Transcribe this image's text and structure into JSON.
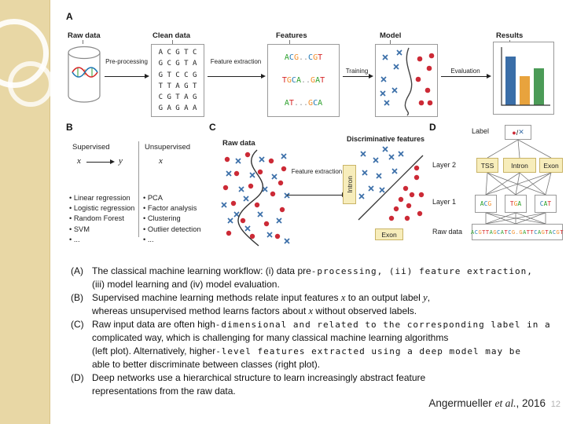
{
  "slide": {
    "page_number": "12",
    "attribution": {
      "pre": "Angermueller ",
      "italic": "et al.",
      "post": ", 2016"
    }
  },
  "figure": {
    "panelA": {
      "label": "A",
      "stage_titles": [
        "Raw data",
        "Clean data",
        "Features",
        "Model",
        "Results"
      ],
      "arrow_labels": [
        "Pre-processing",
        "Feature extraction",
        "Training",
        "Evaluation"
      ],
      "sequence_rows": [
        "A C G T C",
        "G C G T A",
        "G T C C G",
        "T T A G T",
        "C G T A G",
        "G A G A A"
      ],
      "motif_rows": [
        "ACG..CGT",
        "TGCA..GAT",
        "AT...GCA"
      ]
    },
    "panelB": {
      "label": "B",
      "columns": [
        {
          "title": "Supervised",
          "diagram_from": "x",
          "diagram_to": "y",
          "items": [
            "Linear regression",
            "Logistic regression",
            "Random Forest",
            "SVM",
            "..."
          ]
        },
        {
          "title": "Unsupervised",
          "diagram_from": "x",
          "diagram_to": "",
          "items": [
            "PCA",
            "Factor analysis",
            "Clustering",
            "Outlier detection",
            "..."
          ]
        }
      ]
    },
    "panelC": {
      "label": "C",
      "left_title": "Raw data",
      "arrow_label": "Feature extraction",
      "right_title": "Discriminative features",
      "y_axis_label": "Intron",
      "x_axis_label": "Exon"
    },
    "panelD": {
      "label": "D",
      "label_row_text": "Label",
      "box_dot": "●",
      "box_slash": "/",
      "box_cross": "✕",
      "layer2_text": "Layer 2",
      "layer1_text": "Layer 1",
      "raw_text": "Raw data",
      "layer2_nodes": [
        "TSS",
        "Intron",
        "Exon"
      ],
      "layer1_motifs": [
        "ACG",
        "TGA",
        "CAT"
      ],
      "raw_sequence": "ACGTTAGCATCG.GATTCAGTACGT"
    },
    "colors": {
      "dot_red": "#cc2a36",
      "cross_blue": "#3a6ea8",
      "node_yellow": "#f7edbb",
      "bar_blue": "#3a6ea8",
      "bar_orange": "#e8a33d",
      "bar_green": "#4b9b57"
    }
  },
  "caption": {
    "lines": [
      {
        "marker": "(A)",
        "s0": "The classical machine learning workflow: (i) data pre",
        "s1": "‐processing, (ii) feature extraction,"
      },
      {
        "marker": "",
        "s0": "(iii) model learning and (iv) model evaluation."
      },
      {
        "marker": "(B)",
        "s0": "Supervised machine learning methods relate input features ",
        "s1": "x",
        "s2": " to an output label ",
        "s3": "y",
        "s4": ","
      },
      {
        "marker": "",
        "s0": "whereas unsupervised method learns factors about ",
        "s1": "x",
        "s2": " without observed labels."
      },
      {
        "marker": "(C)",
        "s0": "Raw input data are often high",
        "s1": "‐dimensional and related to the corresponding label in a"
      },
      {
        "marker": "",
        "s0": "complicated way, which is challenging for many classical machine learning algorithms"
      },
      {
        "marker": "",
        "s0": "(left plot). Alternatively, higher",
        "s1": "‐level features extracted using a deep model may be"
      },
      {
        "marker": "",
        "s0": "able to better discriminate between classes (right plot)."
      },
      {
        "marker": "(D)",
        "s0": "Deep networks use a hierarchical structure to learn increasingly abstract feature"
      },
      {
        "marker": "",
        "s0": "representations from the raw data."
      }
    ]
  }
}
